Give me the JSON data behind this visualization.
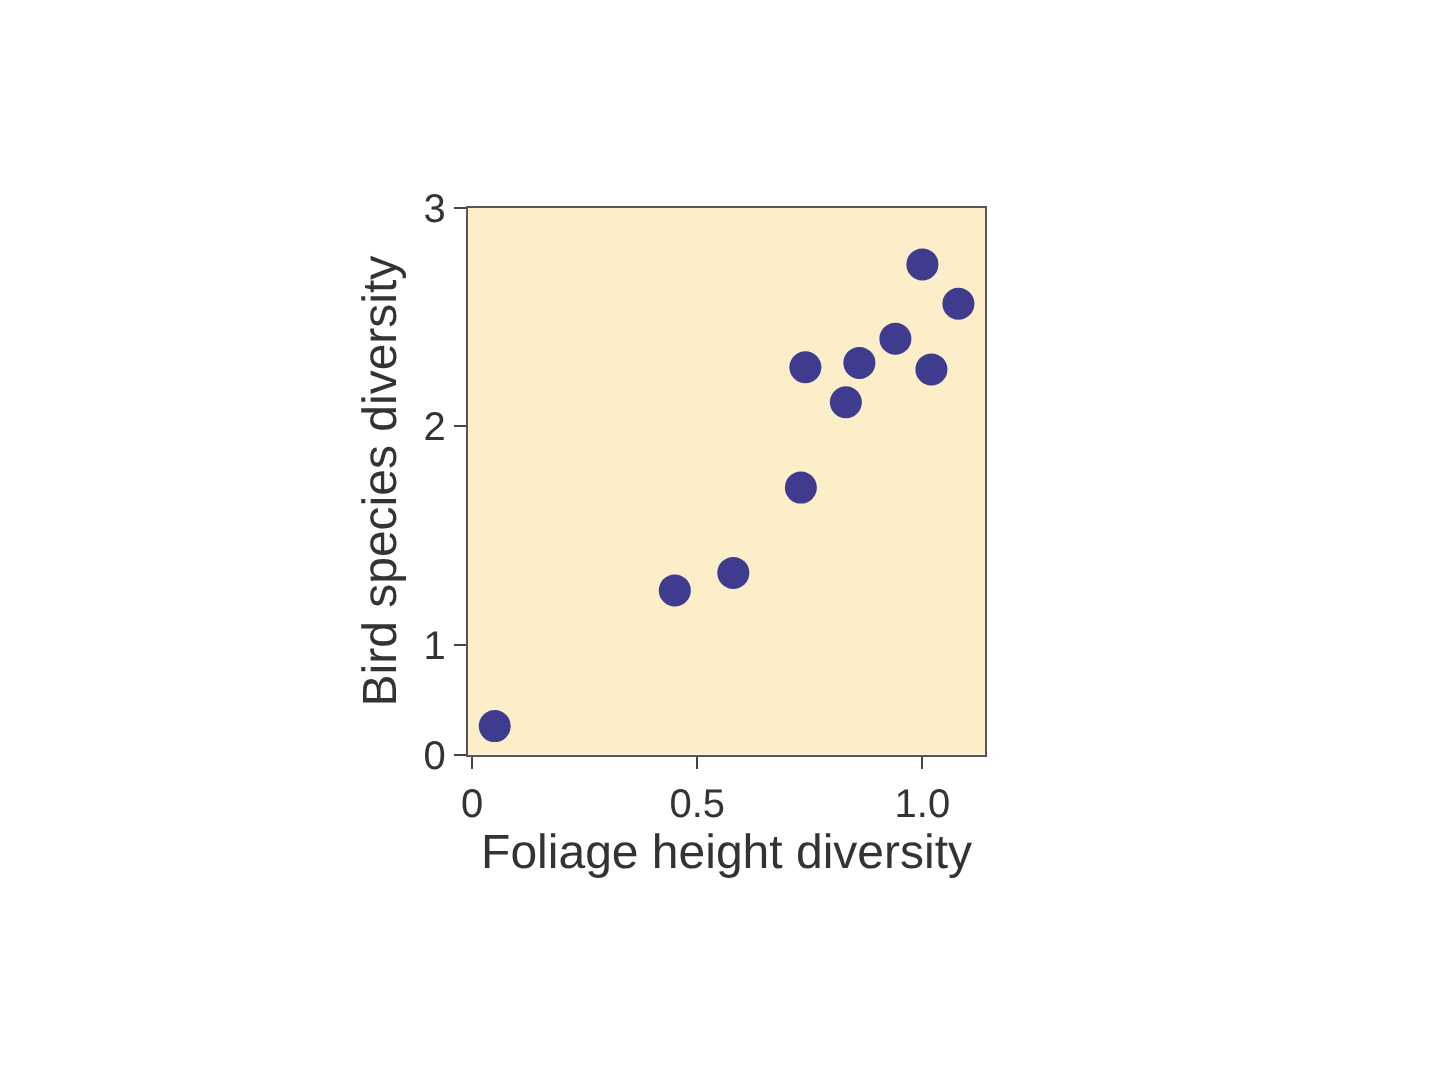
{
  "chart_data": {
    "type": "scatter",
    "xlabel": "Foliage height diversity",
    "ylabel": "Bird species diversity",
    "x": [
      0.05,
      0.45,
      0.58,
      0.73,
      0.74,
      0.83,
      0.86,
      0.94,
      1.0,
      1.02,
      1.08
    ],
    "values": [
      0.63,
      1.25,
      1.33,
      1.72,
      2.27,
      2.11,
      2.29,
      2.4,
      2.74,
      2.26,
      2.56
    ],
    "color": "#3f3b8e",
    "marker": "circle",
    "grid": false,
    "xlim": [
      -0.01,
      1.14
    ],
    "xticks": [
      0,
      0.5,
      {
        "value": 1.0,
        "label": "1.0"
      }
    ],
    "ylim": [
      0.5,
      3
    ],
    "yticks": [
      {
        "value": 0.5,
        "label": "0"
      },
      1,
      2,
      3
    ]
  }
}
